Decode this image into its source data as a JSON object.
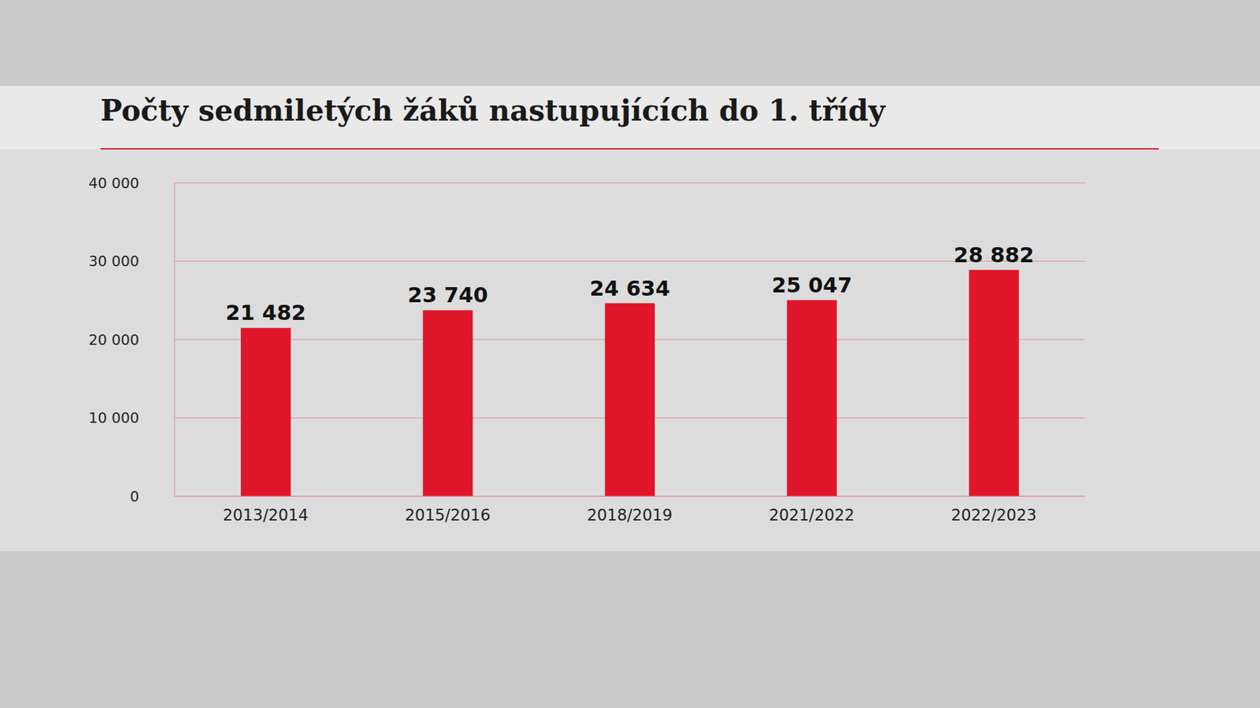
{
  "chart_data": {
    "type": "bar",
    "title": "Počty sedmiletých žáků nastupujících do 1. třídy",
    "categories": [
      "2013/2014",
      "2015/2016",
      "2018/2019",
      "2021/2022",
      "2022/2023"
    ],
    "values": [
      21482,
      23740,
      24634,
      25047,
      28882
    ],
    "value_labels": [
      "21 482",
      "23 740",
      "24 634",
      "25 047",
      "28 882"
    ],
    "color": "#e0162b",
    "ylim": [
      0,
      40000
    ],
    "yticks": [
      0,
      {
        "value": 10000,
        "label": "10 000"
      },
      {
        "value": 20000,
        "label": "20 000"
      },
      {
        "value": 30000,
        "label": "30 000"
      },
      {
        "value": 40000,
        "label": "40 000"
      }
    ],
    "grid": true,
    "data_labels": true
  }
}
